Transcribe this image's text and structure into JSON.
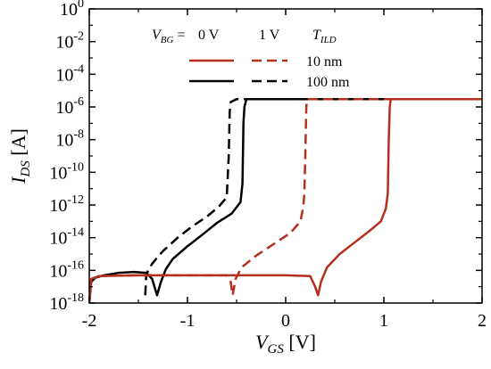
{
  "chart_data": {
    "type": "line",
    "title": "",
    "xlabel": {
      "main": "V",
      "sub": "GS",
      "unit": " [V]"
    },
    "ylabel": {
      "main": "I",
      "sub": "DS",
      "unit": " [A]"
    },
    "x_scale": "linear",
    "y_scale": "log",
    "xlim": [
      -2,
      2
    ],
    "ylim": [
      1e-18,
      1
    ],
    "x_ticks": [
      -2,
      -1,
      0,
      1,
      2
    ],
    "x_tick_labels": [
      "-2",
      "-1",
      "0",
      "1",
      "2"
    ],
    "y_tick_exponents": [
      0,
      -2,
      -4,
      -6,
      -8,
      -10,
      -12,
      -14,
      -16,
      -18
    ],
    "y_tick_base": "10",
    "grid": false,
    "legend": {
      "position": "top",
      "header": {
        "vbg_label_main": "V",
        "vbg_label_sub": "BG",
        "vbg_eq": "=",
        "col1": "0 V",
        "col2": "1 V",
        "tild_main": "T",
        "tild_sub": "ILD"
      },
      "rows": [
        {
          "label": "10 nm",
          "color": "#b42f1e"
        },
        {
          "label": "100 nm",
          "color": "#000000"
        }
      ]
    },
    "series": [
      {
        "name": "100 nm, V_BG = 1 V",
        "color": "#000000",
        "dash": true,
        "points": [
          [
            -1.43,
            3e-18
          ],
          [
            -1.42,
            5e-17
          ],
          [
            -1.4,
            1e-16
          ],
          [
            -1.36,
            2.5e-16
          ],
          [
            -1.32,
            5e-16
          ],
          [
            -1.25,
            1.5e-15
          ],
          [
            -1.1,
            1e-14
          ],
          [
            -0.95,
            5e-14
          ],
          [
            -0.8,
            2e-13
          ],
          [
            -0.68,
            8e-13
          ],
          [
            -0.6,
            3e-12
          ],
          [
            -0.58,
            1e-09
          ],
          [
            -0.57,
            5e-07
          ],
          [
            -0.56,
            2e-06
          ],
          [
            -0.5,
            3e-06
          ],
          [
            2.0,
            3e-06
          ]
        ]
      },
      {
        "name": "100 nm, V_BG = 0 V",
        "color": "#000000",
        "dash": false,
        "points": [
          [
            -2.0,
            1e-18
          ],
          [
            -1.98,
            2e-17
          ],
          [
            -1.94,
            3.5e-17
          ],
          [
            -1.85,
            5e-17
          ],
          [
            -1.7,
            7e-17
          ],
          [
            -1.55,
            8e-17
          ],
          [
            -1.42,
            7e-17
          ],
          [
            -1.36,
            3e-17
          ],
          [
            -1.31,
            3e-18
          ],
          [
            -1.27,
            2e-17
          ],
          [
            -1.22,
            1.2e-16
          ],
          [
            -1.15,
            5e-16
          ],
          [
            -1.0,
            3e-15
          ],
          [
            -0.85,
            1.5e-14
          ],
          [
            -0.7,
            8e-14
          ],
          [
            -0.55,
            3e-13
          ],
          [
            -0.46,
            1.5e-12
          ],
          [
            -0.44,
            2e-11
          ],
          [
            -0.43,
            1e-07
          ],
          [
            -0.42,
            1e-06
          ],
          [
            -0.4,
            3e-06
          ],
          [
            2.0,
            3e-06
          ]
        ]
      },
      {
        "name": "10 nm, V_BG = 1 V",
        "color": "#b42f1e",
        "dash": true,
        "points": [
          [
            -2.0,
            1e-18
          ],
          [
            -1.98,
            3e-17
          ],
          [
            -1.9,
            4.5e-17
          ],
          [
            -1.5,
            5e-17
          ],
          [
            -1.0,
            5e-17
          ],
          [
            -0.6,
            5e-17
          ],
          [
            -0.56,
            2e-17
          ],
          [
            -0.54,
            3e-18
          ],
          [
            -0.51,
            3e-17
          ],
          [
            -0.45,
            1.5e-16
          ],
          [
            -0.3,
            8e-16
          ],
          [
            -0.1,
            5e-15
          ],
          [
            0.05,
            2e-14
          ],
          [
            0.15,
            1e-13
          ],
          [
            0.18,
            8e-13
          ],
          [
            0.19,
            5e-12
          ],
          [
            0.2,
            1e-09
          ],
          [
            0.21,
            1e-06
          ],
          [
            0.22,
            3e-06
          ],
          [
            2.0,
            3e-06
          ]
        ]
      },
      {
        "name": "10 nm, V_BG = 0 V",
        "color": "#b42f1e",
        "dash": false,
        "points": [
          [
            -2.0,
            1e-18
          ],
          [
            -1.98,
            3e-17
          ],
          [
            -1.9,
            4.5e-17
          ],
          [
            -1.5,
            5e-17
          ],
          [
            -1.0,
            5e-17
          ],
          [
            -0.5,
            5e-17
          ],
          [
            0.0,
            5e-17
          ],
          [
            0.25,
            4.5e-17
          ],
          [
            0.3,
            1e-17
          ],
          [
            0.33,
            3e-18
          ],
          [
            0.36,
            2e-17
          ],
          [
            0.42,
            1.5e-16
          ],
          [
            0.55,
            1e-15
          ],
          [
            0.7,
            5e-15
          ],
          [
            0.85,
            2.5e-14
          ],
          [
            0.97,
            1e-13
          ],
          [
            1.02,
            6e-13
          ],
          [
            1.04,
            5e-12
          ],
          [
            1.05,
            1e-08
          ],
          [
            1.06,
            1e-06
          ],
          [
            1.07,
            3e-06
          ],
          [
            2.0,
            3e-06
          ]
        ]
      }
    ]
  }
}
